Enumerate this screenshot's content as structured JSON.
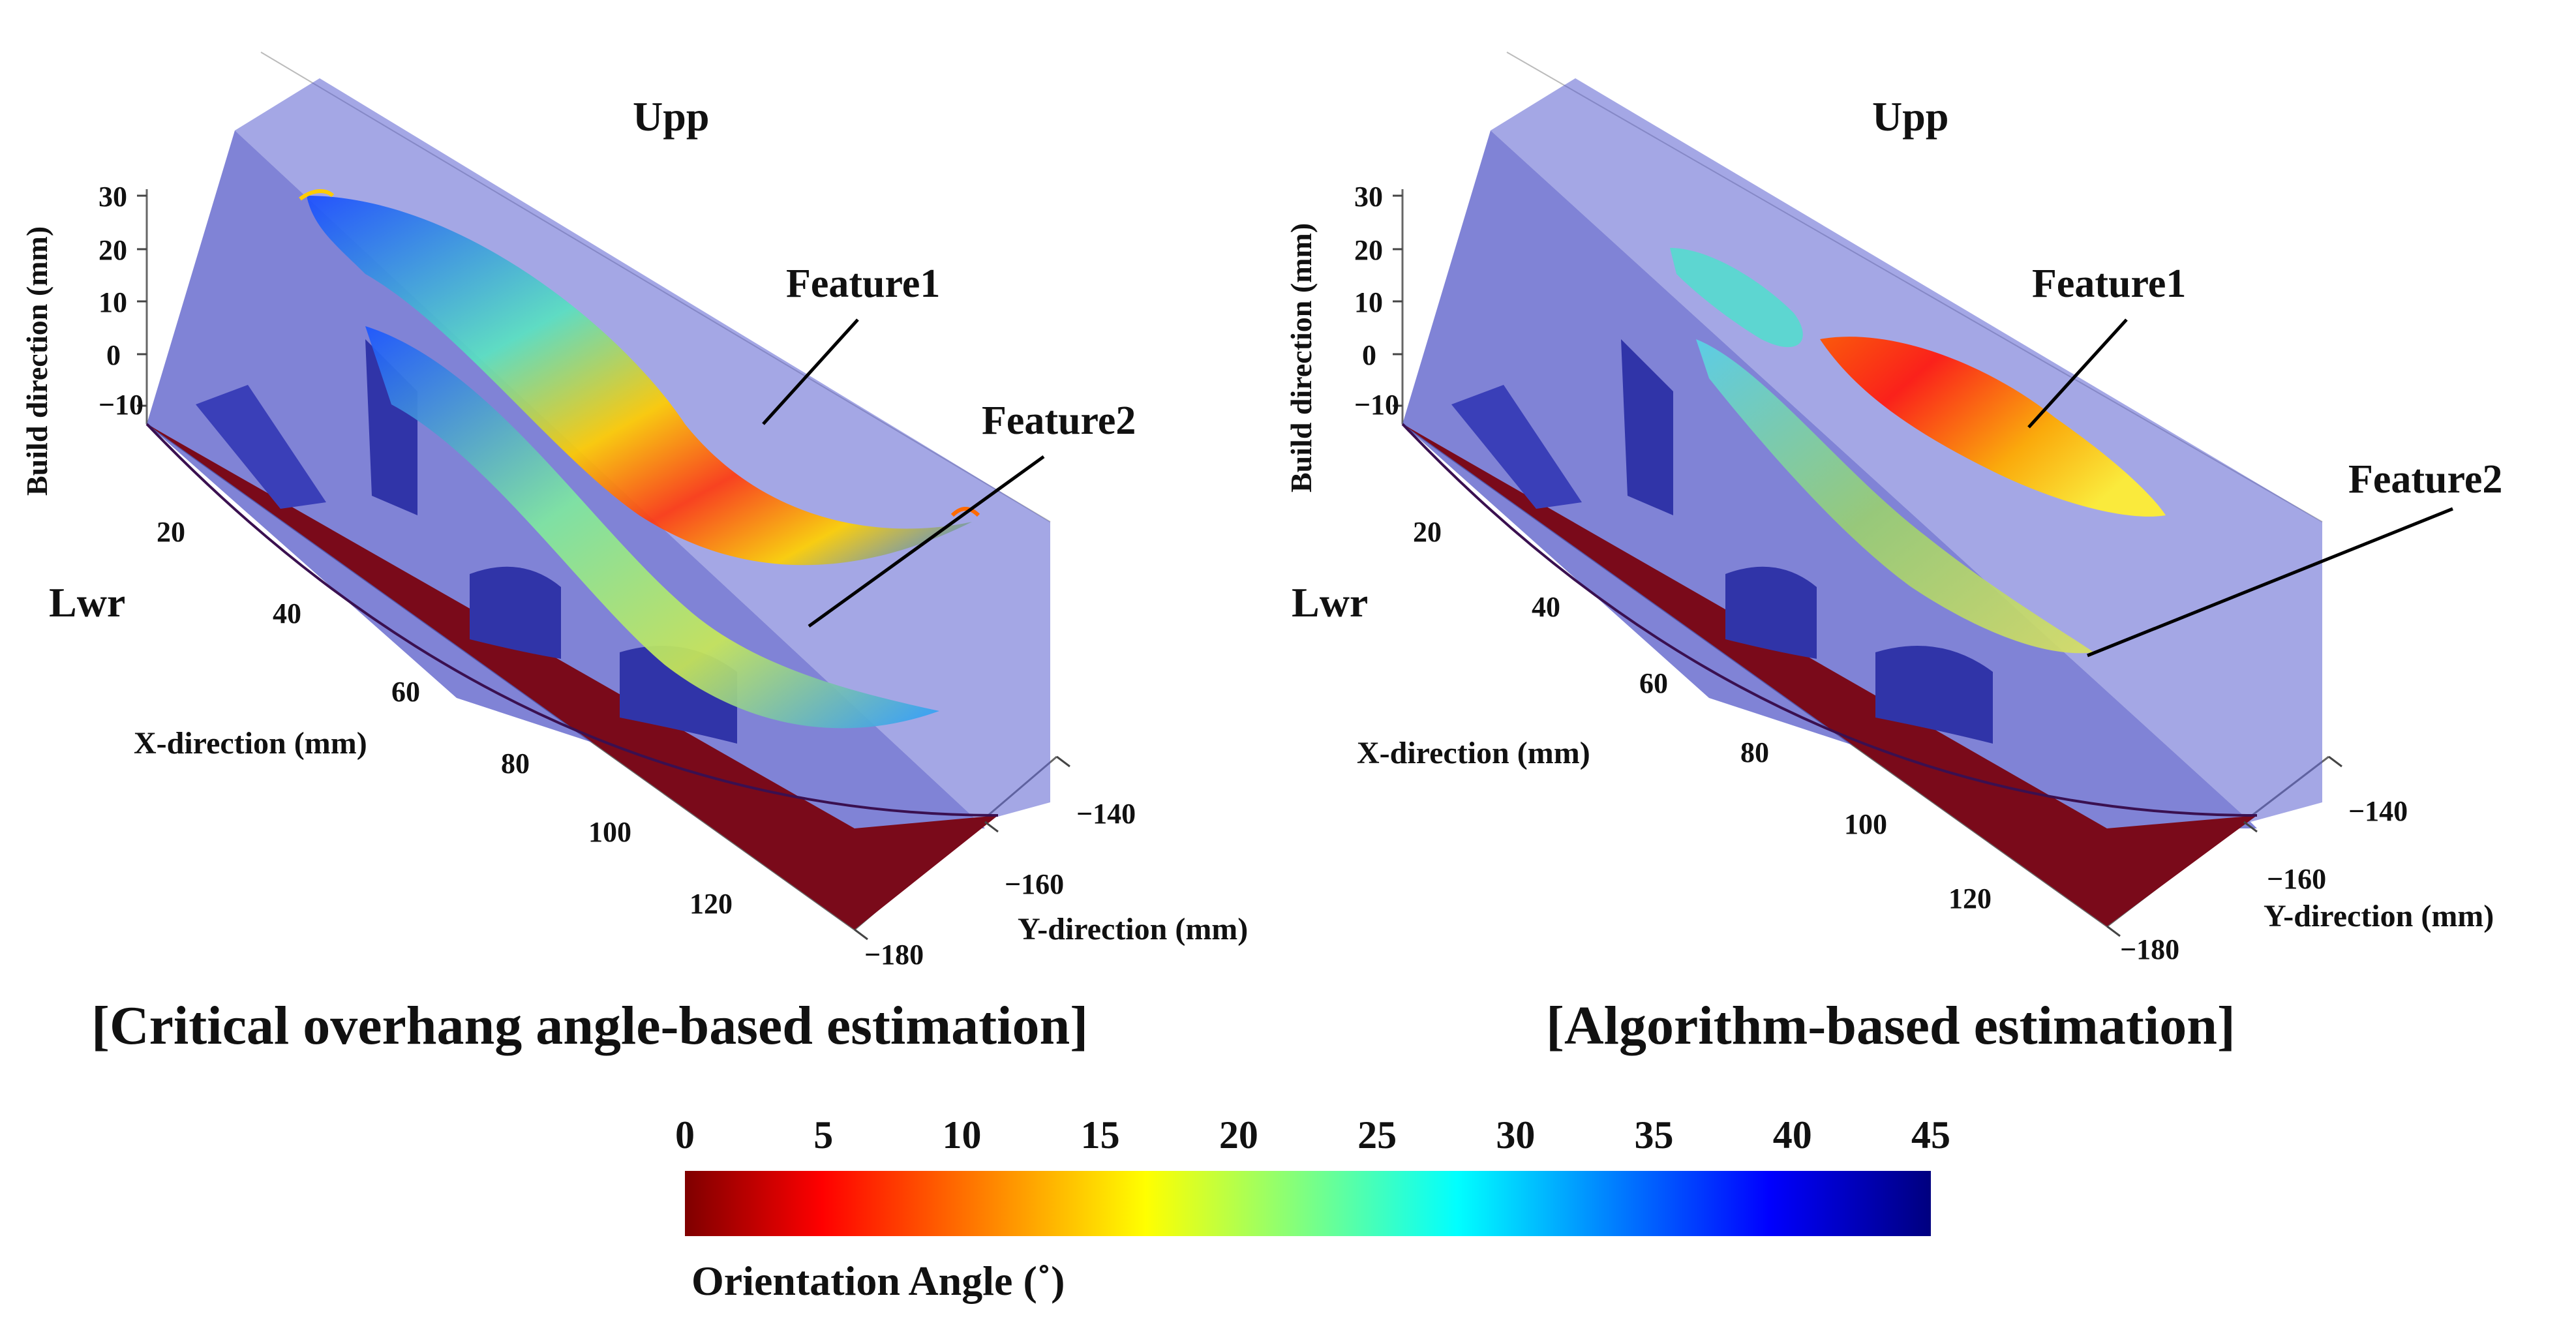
{
  "chart_data": [
    {
      "type": "surface3d",
      "caption": "[Critical overhang angle-based estimation]",
      "zlabel": "Build direction (mm)",
      "xlabel": "X-direction (mm)",
      "ylabel": "Y-direction (mm)",
      "z_ticks": [
        "30",
        "20",
        "10",
        "0",
        "−10"
      ],
      "x_ticks": [
        "20",
        "40",
        "60",
        "80",
        "100",
        "120"
      ],
      "y_ticks": [
        "−140",
        "−160",
        "−180"
      ],
      "annotations": [
        "Upp",
        "Lwr",
        "Feature1",
        "Feature2"
      ],
      "color_by": "Orientation Angle"
    },
    {
      "type": "surface3d",
      "caption": "[Algorithm-based estimation]",
      "zlabel": "Build direction (mm)",
      "xlabel": "X-direction (mm)",
      "ylabel": "Y-direction (mm)",
      "z_ticks": [
        "30",
        "20",
        "10",
        "0",
        "−10"
      ],
      "x_ticks": [
        "20",
        "40",
        "60",
        "80",
        "100",
        "120"
      ],
      "y_ticks": [
        "−140",
        "−160",
        "−180"
      ],
      "annotations": [
        "Upp",
        "Lwr",
        "Feature1",
        "Feature2"
      ],
      "color_by": "Orientation Angle"
    }
  ],
  "colorbar": {
    "label": "Orientation Angle (˚)",
    "min": 0,
    "max": 45,
    "ticks": [
      "0",
      "5",
      "10",
      "15",
      "20",
      "25",
      "30",
      "35",
      "40",
      "45"
    ],
    "colormap": [
      "#7f0000",
      "#ff0000",
      "#ffff00",
      "#00ffff",
      "#0000ff",
      "#00007f"
    ]
  },
  "colors": {
    "body": "#5a5fd0",
    "body_dark": "#3034a8",
    "base": "#7a0a1a"
  }
}
